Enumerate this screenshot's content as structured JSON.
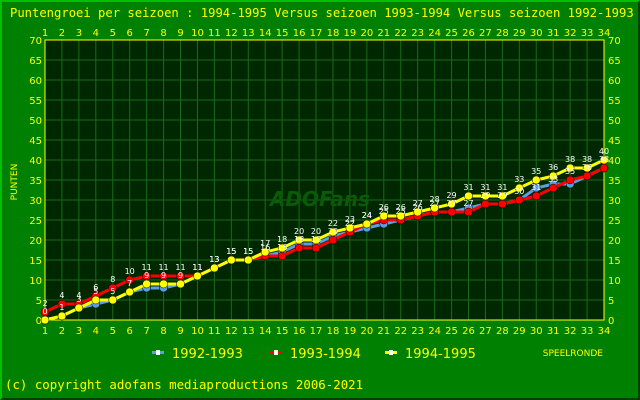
{
  "chart_data": {
    "type": "line",
    "title": "Puntengroei per seizoen : 1994-1995 Versus seizoen 1993-1994 Versus seizoen 1992-1993",
    "ylabel": "PUNTEN",
    "xlabel": "SPEELRONDE",
    "x": [
      1,
      2,
      3,
      4,
      5,
      6,
      7,
      8,
      9,
      10,
      11,
      12,
      13,
      14,
      15,
      16,
      17,
      18,
      19,
      20,
      21,
      22,
      23,
      24,
      25,
      26,
      27,
      28,
      29,
      30,
      31,
      32,
      33,
      34
    ],
    "ylim": [
      0,
      70
    ],
    "yticks": [
      0,
      5,
      10,
      15,
      20,
      25,
      30,
      35,
      40,
      45,
      50,
      55,
      60,
      65,
      70
    ],
    "grid": true,
    "legend_position": "bottom",
    "series": [
      {
        "name": "1992-1993",
        "color": "#5aa0e0",
        "values": [
          0,
          1,
          3,
          4,
          5,
          7,
          8,
          8,
          9,
          11,
          13,
          15,
          15,
          16,
          17,
          19,
          19,
          21,
          22,
          23,
          24,
          25,
          26,
          27,
          27,
          28,
          29,
          29,
          30,
          33,
          34,
          34,
          36,
          38
        ]
      },
      {
        "name": "1993-1994",
        "color": "#ff0000",
        "values": [
          2,
          4,
          4,
          6,
          8,
          10,
          11,
          11,
          11,
          11,
          13,
          15,
          15,
          16,
          16,
          18,
          18,
          20,
          22,
          24,
          25,
          25,
          26,
          27,
          27,
          27,
          29,
          29,
          30,
          31,
          33,
          35,
          36,
          38
        ]
      },
      {
        "name": "1994-1995",
        "color": "#ffff00",
        "values": [
          0,
          1,
          3,
          5,
          5,
          7,
          9,
          9,
          9,
          11,
          13,
          15,
          15,
          17,
          18,
          20,
          20,
          22,
          23,
          24,
          26,
          26,
          27,
          28,
          29,
          31,
          31,
          31,
          33,
          35,
          36,
          38,
          38,
          40
        ]
      }
    ]
  },
  "copyright": "(c) copyright adofans mediaproductions 2006-2021",
  "watermark": "ADOFans"
}
